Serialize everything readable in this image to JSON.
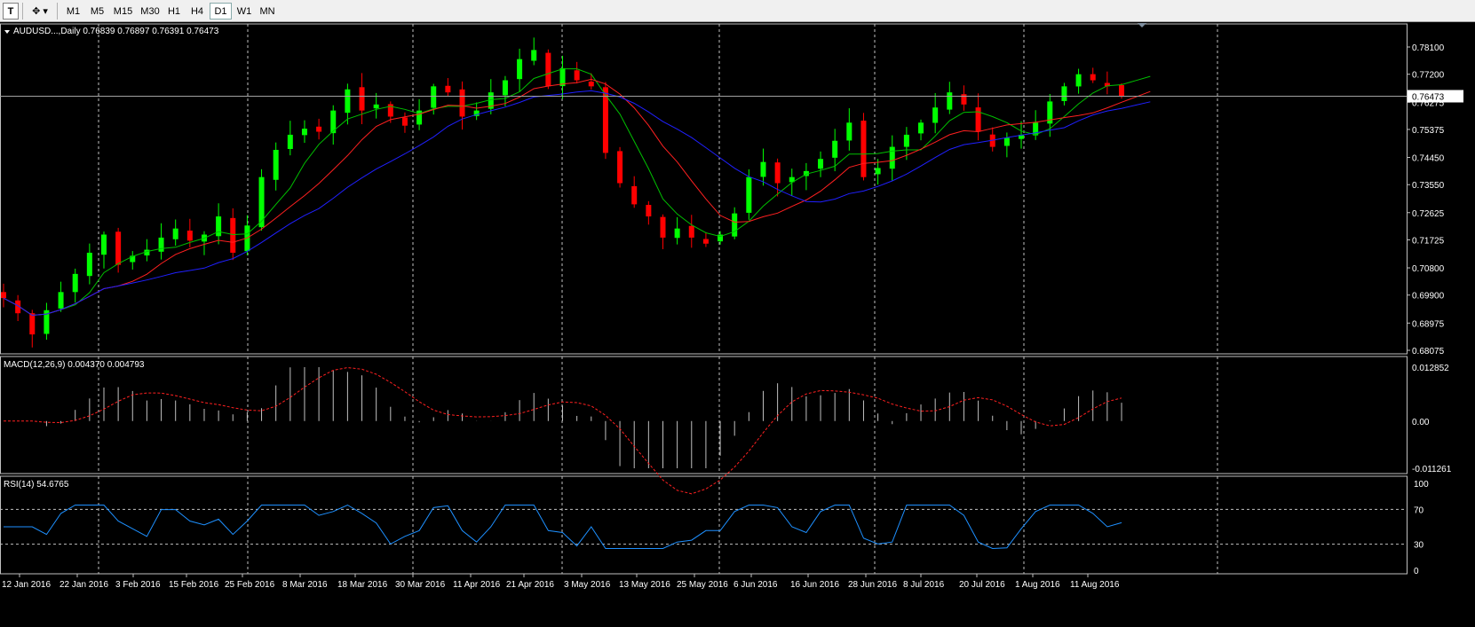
{
  "toolbar": {
    "periods": [
      "M1",
      "M5",
      "M15",
      "M30",
      "H1",
      "H4",
      "D1",
      "W1",
      "MN"
    ],
    "active_period": "D1"
  },
  "colors": {
    "background": "#000000",
    "bull_candle": "#00ff00",
    "bear_candle": "#ff0000",
    "ma_fast": "#00c000",
    "ma_mid": "#ff2020",
    "ma_slow": "#2020ff",
    "grid": "#c0c0c0",
    "rsi_line": "#1e90ff",
    "macd_signal": "#ff2020",
    "macd_hist": "#c0c0c0"
  },
  "main_panel": {
    "header": "AUDUSD...,Daily  0.76839 0.76897 0.76391 0.76473",
    "current_price": "0.76473",
    "price_ticks": [
      "0.78100",
      "0.77200",
      "0.76275",
      "0.75375",
      "0.74450",
      "0.73550",
      "0.72625",
      "0.71725",
      "0.70800",
      "0.69900",
      "0.68975",
      "0.68075"
    ]
  },
  "macd_panel": {
    "header": "MACD(12,26,9) 0.004370 0.004793",
    "ticks": [
      "0.012852",
      "0.00",
      "-0.011261"
    ]
  },
  "rsi_panel": {
    "header": "RSI(14) 54.6765",
    "ticks": [
      "100",
      "70",
      "30",
      "0"
    ]
  },
  "date_axis": [
    "12 Jan 2016",
    "22 Jan 2016",
    "3 Feb 2016",
    "15 Feb 2016",
    "25 Feb 2016",
    "8 Mar 2016",
    "18 Mar 2016",
    "30 Mar 2016",
    "11 Apr 2016",
    "21 Apr 2016",
    "3 May 2016",
    "13 May 2016",
    "25 May 2016",
    "6 Jun 2016",
    "16 Jun 2016",
    "28 Jun 2016",
    "8 Jul 2016",
    "20 Jul 2016",
    "1 Aug 2016",
    "11 Aug 2016"
  ],
  "chart_data": {
    "type": "candlestick",
    "symbol": "AUDUSD",
    "timeframe": "Daily",
    "close_path": [
      0.698,
      0.693,
      0.686,
      0.694,
      0.7,
      0.706,
      0.713,
      0.719,
      0.709,
      0.712,
      0.714,
      0.718,
      0.721,
      0.717,
      0.719,
      0.725,
      0.713,
      0.722,
      0.738,
      0.747,
      0.752,
      0.754,
      0.753,
      0.76,
      0.767,
      0.76,
      0.762,
      0.758,
      0.755,
      0.76,
      0.768,
      0.766,
      0.758,
      0.76,
      0.766,
      0.77,
      0.777,
      0.78,
      0.768,
      0.774,
      0.77,
      0.768,
      0.746,
      0.736,
      0.729,
      0.725,
      0.718,
      0.721,
      0.718,
      0.716,
      0.719,
      0.726,
      0.738,
      0.743,
      0.736,
      0.738,
      0.74,
      0.744,
      0.75,
      0.756,
      0.738,
      0.741,
      0.748,
      0.752,
      0.756,
      0.761,
      0.766,
      0.762,
      0.753,
      0.748,
      0.751,
      0.752,
      0.756,
      0.763,
      0.768,
      0.772,
      0.77,
      0.768,
      0.7647
    ],
    "period_labels": [
      "12 Jan 2016",
      "22 Jan 2016",
      "3 Feb 2016",
      "15 Feb 2016",
      "25 Feb 2016",
      "8 Mar 2016",
      "18 Mar 2016",
      "30 Mar 2016",
      "11 Apr 2016",
      "21 Apr 2016",
      "3 May 2016",
      "13 May 2016",
      "25 May 2016",
      "6 Jun 2016",
      "16 Jun 2016",
      "28 Jun 2016",
      "8 Jul 2016",
      "20 Jul 2016",
      "1 Aug 2016",
      "11 Aug 2016"
    ],
    "last": {
      "open": 0.76839,
      "high": 0.76897,
      "low": 0.76391,
      "close": 0.76473
    },
    "y_range": [
      0.68075,
      0.781
    ],
    "macd": {
      "value": 0.00437,
      "signal": 0.004793,
      "range": [
        -0.011261,
        0.012852
      ]
    },
    "rsi": {
      "value": 54.6765,
      "levels": [
        30,
        70
      ],
      "range": [
        0,
        100
      ]
    },
    "grid": true
  }
}
